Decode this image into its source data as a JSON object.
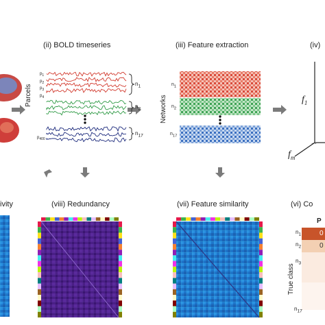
{
  "panels": {
    "bold": {
      "title": "(ii) BOLD timeseries",
      "axis_label": "Parcels",
      "parcels": [
        "p",
        "p",
        "p",
        "p"
      ],
      "last_parcel": "p",
      "networks": [
        "n",
        "n",
        "n"
      ],
      "network_subs": [
        "1",
        "2",
        "17"
      ]
    },
    "feature": {
      "title": "(iii) Feature extraction",
      "axis_label": "Networks",
      "networks": [
        "n",
        "n",
        "n"
      ],
      "network_subs": [
        "1",
        "2",
        "17"
      ]
    },
    "space": {
      "title": "(iv)",
      "f1": "f",
      "f1_sub": "1",
      "fm": "f",
      "fm_sub": "m",
      "dots": "..."
    },
    "connectivity": {
      "title": "ivity"
    },
    "redundancy": {
      "title": "(viii) Redundancy"
    },
    "similarity": {
      "title": "(vii) Feature similarity"
    },
    "confusion": {
      "title": "(vi) Co",
      "pred_header": "P",
      "axis_label": "True class",
      "rows": [
        "n",
        "n",
        "n",
        "n"
      ],
      "row_subs": [
        "1",
        "2",
        "3",
        "17"
      ],
      "cells": [
        "0",
        "0"
      ]
    }
  },
  "colors": {
    "red": "#d23a2e",
    "green": "#2f9a45",
    "blue": "#2c5fb0",
    "navy": "#1c2a7c",
    "arrow": "#7b7b7b"
  }
}
